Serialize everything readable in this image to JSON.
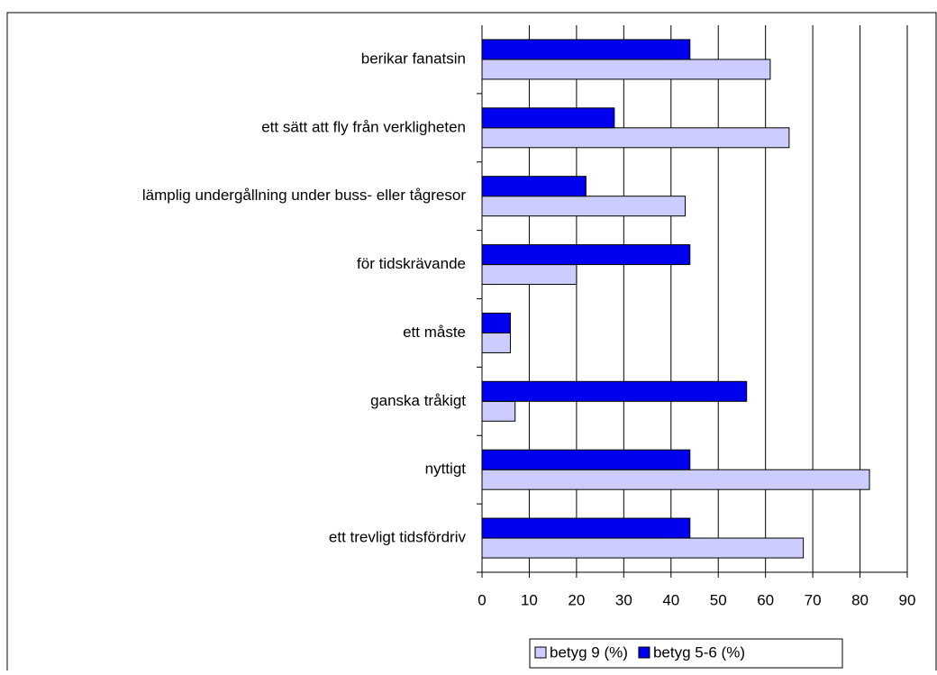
{
  "chart_data": {
    "type": "hbar",
    "categories": [
      "berikar fanatsin",
      "ett sätt att fly från verkligheten",
      "lämplig undergållning under buss- eller tågresor",
      "för tidskrävande",
      "ett måste",
      "ganska tråkigt",
      "nyttigt",
      "ett trevligt tidsfördriv"
    ],
    "series": [
      {
        "name": "betyg 9 (%)",
        "color": "#ccccff",
        "values": [
          61,
          65,
          43,
          20,
          6,
          7,
          82,
          68
        ]
      },
      {
        "name": "betyg 5-6 (%)",
        "color": "#0000ee",
        "values": [
          44,
          28,
          22,
          44,
          6,
          56,
          44,
          44
        ]
      }
    ],
    "xlim": [
      0,
      90
    ],
    "xticks": [
      0,
      10,
      20,
      30,
      40,
      50,
      60,
      70,
      80,
      90
    ],
    "grid": true,
    "legend": "bottom"
  }
}
